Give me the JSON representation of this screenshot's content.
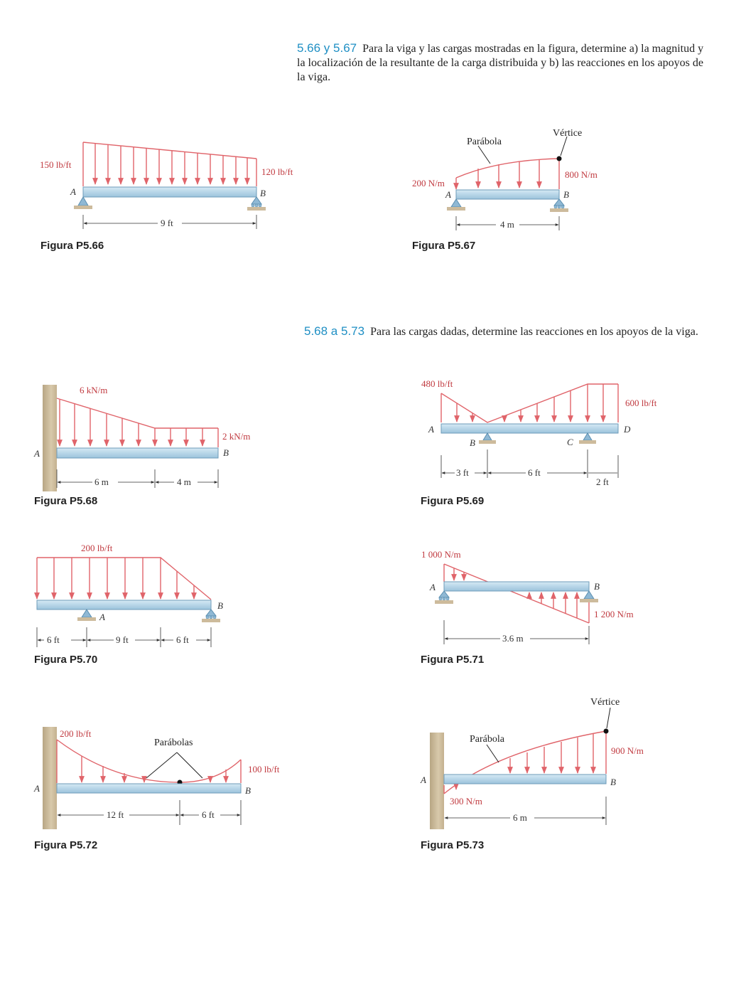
{
  "problems": {
    "p566": {
      "number": "5.66 y 5.67",
      "text": "Para la viga y las cargas mostradas en la figura, determine a) la magnitud y la localización de la resultante de la carga distribuida y b) las reacciones en los apoyos de la viga."
    },
    "p568": {
      "number": "5.68 a 5.73",
      "text": "Para las cargas dadas, determine las reacciones en los apoyos de la viga."
    }
  },
  "figures": {
    "f566": {
      "caption": "Figura P5.66",
      "load_left": "150 lb/ft",
      "load_right": "120 lb/ft",
      "point_a": "A",
      "point_b": "B",
      "span": "9 ft"
    },
    "f567": {
      "caption": "Figura P5.67",
      "load_left": "200 N/m",
      "load_right": "800 N/m",
      "curve_label": "Parábola",
      "vertex_label": "Vértice",
      "point_a": "A",
      "point_b": "B",
      "span": "4 m"
    },
    "f568": {
      "caption": "Figura P5.68",
      "load_left": "6 kN/m",
      "load_right": "2 kN/m",
      "point_a": "A",
      "point_b": "B",
      "span1": "6 m",
      "span2": "4 m"
    },
    "f569": {
      "caption": "Figura P5.69",
      "load_left": "480 lb/ft",
      "load_right": "600 lb/ft",
      "point_a": "A",
      "point_b": "B",
      "point_c": "C",
      "point_d": "D",
      "span1": "3 ft",
      "span2": "6 ft",
      "span3": "2 ft"
    },
    "f570": {
      "caption": "Figura P5.70",
      "load": "200 lb/ft",
      "point_a": "A",
      "point_b": "B",
      "span1": "6 ft",
      "span2": "9 ft",
      "span3": "6 ft"
    },
    "f571": {
      "caption": "Figura P5.71",
      "load_left": "1 000 N/m",
      "load_right": "1 200 N/m",
      "point_a": "A",
      "point_b": "B",
      "span": "3.6 m"
    },
    "f572": {
      "caption": "Figura P5.72",
      "load_left": "200 lb/ft",
      "load_right": "100 lb/ft",
      "curve_label": "Parábolas",
      "point_a": "A",
      "point_b": "B",
      "span1": "12 ft",
      "span2": "6 ft"
    },
    "f573": {
      "caption": "Figura P5.73",
      "load_left": "300 N/m",
      "load_right": "900 N/m",
      "curve_label": "Parábola",
      "vertex_label": "Vértice",
      "point_a": "A",
      "point_b": "B",
      "span": "6 m"
    }
  },
  "colors": {
    "load": "#e0646a",
    "beam": "#bcd9ea",
    "beam_edge": "#5b8fb0",
    "support": "#8fb8d4",
    "wall": "#cdbb9c",
    "accent": "#1f8fc4"
  }
}
